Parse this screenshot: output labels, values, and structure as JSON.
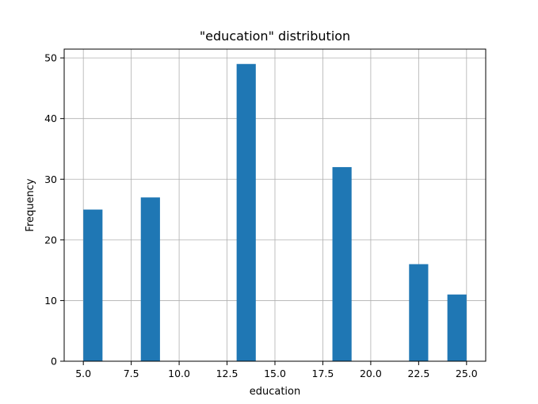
{
  "chart_data": {
    "type": "bar",
    "title": "\"education\" distribution",
    "xlabel": "education",
    "ylabel": "Frequency",
    "xlim": [
      4,
      26
    ],
    "ylim": [
      0,
      51.45
    ],
    "bar_width": 1,
    "grid": true,
    "bar_color": "#1f77b4",
    "x_ticks": [
      5.0,
      7.5,
      10.0,
      12.5,
      15.0,
      17.5,
      20.0,
      22.5,
      25.0
    ],
    "x_tick_labels": [
      "5.0",
      "7.5",
      "10.0",
      "12.5",
      "15.0",
      "17.5",
      "20.0",
      "22.5",
      "25.0"
    ],
    "y_ticks": [
      0,
      10,
      20,
      30,
      40,
      50
    ],
    "y_tick_labels": [
      "0",
      "10",
      "20",
      "30",
      "40",
      "50"
    ],
    "bars": [
      {
        "x_start": 5,
        "x_end": 6,
        "value": 25
      },
      {
        "x_start": 8,
        "x_end": 9,
        "value": 27
      },
      {
        "x_start": 13,
        "x_end": 14,
        "value": 49
      },
      {
        "x_start": 18,
        "x_end": 19,
        "value": 32
      },
      {
        "x_start": 22,
        "x_end": 23,
        "value": 16
      },
      {
        "x_start": 24,
        "x_end": 25,
        "value": 11
      }
    ]
  }
}
